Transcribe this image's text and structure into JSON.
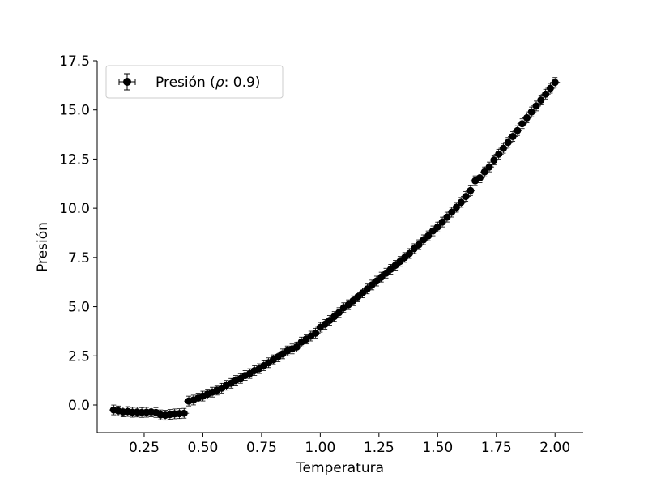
{
  "chart_data": {
    "type": "scatter",
    "title": "",
    "xlabel": "Temperatura",
    "ylabel": "Presión",
    "xlim": [
      0.05,
      2.12
    ],
    "ylim": [
      -1.4,
      17.5
    ],
    "xticks": [
      0.25,
      0.5,
      0.75,
      1.0,
      1.25,
      1.5,
      1.75,
      2.0
    ],
    "xtick_labels": [
      "0.25",
      "0.50",
      "0.75",
      "1.00",
      "1.25",
      "1.50",
      "1.75",
      "2.00"
    ],
    "yticks": [
      0.0,
      2.5,
      5.0,
      7.5,
      10.0,
      12.5,
      15.0,
      17.5
    ],
    "ytick_labels": [
      "0.0",
      "2.5",
      "5.0",
      "7.5",
      "10.0",
      "12.5",
      "15.0",
      "17.5"
    ],
    "grid": false,
    "legend": {
      "placement": "top-left",
      "label_prefix": "Presión (",
      "label_symbol": "ρ",
      "label_suffix": ": 0.9)"
    },
    "series": [
      {
        "name": "Presión (ρ: 0.9)",
        "marker": "circle",
        "error_bars": true,
        "color": "#000000",
        "x": [
          0.12,
          0.14,
          0.16,
          0.18,
          0.2,
          0.22,
          0.24,
          0.26,
          0.28,
          0.3,
          0.32,
          0.34,
          0.36,
          0.38,
          0.4,
          0.42,
          0.44,
          0.46,
          0.48,
          0.5,
          0.52,
          0.54,
          0.56,
          0.58,
          0.6,
          0.62,
          0.64,
          0.66,
          0.68,
          0.7,
          0.72,
          0.74,
          0.76,
          0.78,
          0.8,
          0.82,
          0.84,
          0.86,
          0.88,
          0.9,
          0.92,
          0.94,
          0.96,
          0.98,
          1.0,
          1.02,
          1.04,
          1.06,
          1.08,
          1.1,
          1.12,
          1.14,
          1.16,
          1.18,
          1.2,
          1.22,
          1.24,
          1.26,
          1.28,
          1.3,
          1.32,
          1.34,
          1.36,
          1.38,
          1.4,
          1.42,
          1.44,
          1.46,
          1.48,
          1.5,
          1.52,
          1.54,
          1.56,
          1.58,
          1.6,
          1.62,
          1.64,
          1.66,
          1.68,
          1.7,
          1.72,
          1.74,
          1.76,
          1.78,
          1.8,
          1.82,
          1.84,
          1.86,
          1.88,
          1.9,
          1.92,
          1.94,
          1.96,
          1.98,
          2.0
        ],
        "y": [
          -0.25,
          -0.3,
          -0.35,
          -0.33,
          -0.37,
          -0.36,
          -0.38,
          -0.37,
          -0.35,
          -0.38,
          -0.5,
          -0.52,
          -0.48,
          -0.45,
          -0.44,
          -0.42,
          0.2,
          0.25,
          0.35,
          0.45,
          0.55,
          0.65,
          0.75,
          0.85,
          1.0,
          1.1,
          1.25,
          1.35,
          1.5,
          1.6,
          1.75,
          1.85,
          2.0,
          2.15,
          2.3,
          2.45,
          2.6,
          2.75,
          2.85,
          2.95,
          3.2,
          3.35,
          3.5,
          3.65,
          3.95,
          4.1,
          4.3,
          4.5,
          4.7,
          4.95,
          5.1,
          5.3,
          5.5,
          5.7,
          5.9,
          6.1,
          6.3,
          6.5,
          6.7,
          6.9,
          7.1,
          7.3,
          7.5,
          7.7,
          7.95,
          8.15,
          8.4,
          8.6,
          8.85,
          9.05,
          9.3,
          9.55,
          9.8,
          10.05,
          10.3,
          10.6,
          10.9,
          11.4,
          11.55,
          11.85,
          12.1,
          12.45,
          12.75,
          13.05,
          13.35,
          13.65,
          13.95,
          14.3,
          14.6,
          14.9,
          15.2,
          15.5,
          15.8,
          16.1,
          16.4
        ]
      }
    ]
  }
}
